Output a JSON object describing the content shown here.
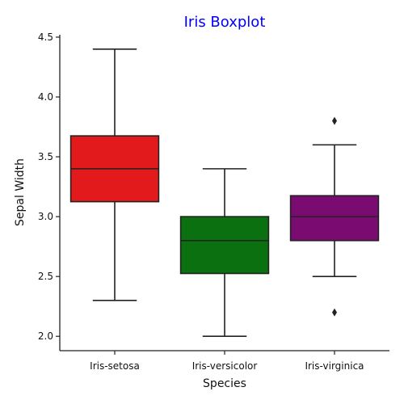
{
  "chart_data": {
    "type": "boxplot",
    "title": "Iris Boxplot",
    "title_color": "#0000ff",
    "xlabel": "Species",
    "ylabel": "Sepal Width",
    "categories": [
      "Iris-setosa",
      "Iris-versicolor",
      "Iris-virginica"
    ],
    "ylim": [
      1.88,
      4.52
    ],
    "yticks": [
      2.0,
      2.5,
      3.0,
      3.5,
      4.0,
      4.5
    ],
    "ytick_labels": [
      "2.0",
      "2.5",
      "3.0",
      "3.5",
      "4.0",
      "4.5"
    ],
    "grid": false,
    "boxes": [
      {
        "category": "Iris-setosa",
        "whisker_low": 2.3,
        "q1": 3.125,
        "median": 3.4,
        "q3": 3.675,
        "whisker_high": 4.4,
        "outliers": [],
        "color": "#e31a1c"
      },
      {
        "category": "Iris-versicolor",
        "whisker_low": 2.0,
        "q1": 2.525,
        "median": 2.8,
        "q3": 3.0,
        "whisker_high": 3.4,
        "outliers": [],
        "color": "#0a7010"
      },
      {
        "category": "Iris-virginica",
        "whisker_low": 2.5,
        "q1": 2.8,
        "median": 3.0,
        "q3": 3.175,
        "whisker_high": 3.6,
        "outliers": [
          2.2,
          3.8
        ],
        "color": "#7a0b70"
      }
    ]
  }
}
